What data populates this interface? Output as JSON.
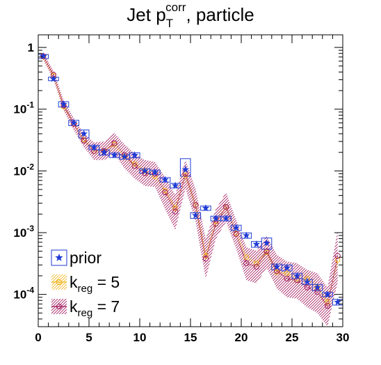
{
  "chart_data": {
    "type": "scatter",
    "title": {
      "base": "Jet p",
      "sup": "corr",
      "sub": "T",
      "tail": ", particle"
    },
    "xlabel": "",
    "ylabel": "",
    "xlim": [
      0,
      30
    ],
    "ylim": [
      3e-05,
      1.6
    ],
    "yscale": "log",
    "x_ticks": [
      0,
      5,
      10,
      15,
      20,
      25,
      30
    ],
    "x_tick_labels": [
      "0",
      "5",
      "10",
      "15",
      "20",
      "25",
      "30"
    ],
    "y_ticks": [
      1,
      0.1,
      0.01,
      0.001,
      0.0001
    ],
    "y_tick_labels": [
      {
        "base": "1",
        "exp": ""
      },
      {
        "base": "10",
        "exp": "-1"
      },
      {
        "base": "10",
        "exp": "-2"
      },
      {
        "base": "10",
        "exp": "-3"
      },
      {
        "base": "10",
        "exp": "-4"
      }
    ],
    "grid": false,
    "legend_position": "bottom-left",
    "legend": [
      {
        "key": "prior",
        "label": "prior"
      },
      {
        "key": "k5",
        "label_base": "k",
        "label_sub": "reg",
        "label_tail": " = 5"
      },
      {
        "key": "k7",
        "label_base": "k",
        "label_sub": "reg",
        "label_tail": " = 7"
      }
    ],
    "colors": {
      "prior_marker": "#1e3ad6",
      "prior_box": "#1e3ad6",
      "kreg5": "#f0b419",
      "kreg7": "#a0145a"
    },
    "bin_width": 1,
    "x": [
      0.5,
      1.5,
      2.5,
      3.5,
      4.5,
      5.5,
      6.5,
      7.5,
      8.5,
      9.5,
      10.5,
      11.5,
      12.5,
      13.5,
      14.5,
      15.5,
      16.5,
      17.5,
      18.5,
      19.5,
      20.5,
      21.5,
      22.5,
      23.5,
      24.5,
      25.5,
      26.5,
      27.5,
      28.5,
      29.5
    ],
    "series": [
      {
        "name": "prior",
        "values": [
          0.72,
          0.31,
          0.12,
          0.06,
          0.04,
          0.024,
          0.02,
          0.018,
          0.017,
          0.018,
          0.01,
          0.0095,
          0.0072,
          0.0058,
          0.0105,
          0.0019,
          0.0025,
          0.0017,
          0.0017,
          0.0012,
          0.0009,
          0.00065,
          0.00068,
          0.00028,
          0.00027,
          0.0002,
          0.00016,
          0.00013,
          0.0001,
          7.5e-05
        ],
        "box_low": [
          0.66,
          0.29,
          0.108,
          0.054,
          0.034,
          0.022,
          0.018,
          0.0165,
          0.0155,
          0.0163,
          0.0092,
          0.0087,
          0.0066,
          0.0053,
          0.0082,
          0.0017,
          0.0023,
          0.00155,
          0.00155,
          0.00108,
          0.00081,
          0.00058,
          0.00054,
          0.00025,
          0.00024,
          0.00018,
          0.000145,
          0.000115,
          9.2e-05,
          6.7e-05
        ],
        "box_high": [
          0.77,
          0.33,
          0.132,
          0.066,
          0.046,
          0.026,
          0.022,
          0.0195,
          0.0185,
          0.0197,
          0.0108,
          0.0103,
          0.0078,
          0.0063,
          0.0158,
          0.0021,
          0.0027,
          0.00185,
          0.00185,
          0.00132,
          0.00099,
          0.00072,
          0.00082,
          0.00031,
          0.0003,
          0.00022,
          0.000175,
          0.000145,
          0.000108,
          8.3e-05
        ]
      },
      {
        "name": "kreg5",
        "values": [
          0.7,
          0.35,
          0.11,
          0.058,
          0.032,
          0.021,
          0.021,
          0.027,
          0.017,
          0.013,
          0.01,
          0.0082,
          0.0048,
          0.0025,
          0.0085,
          0.0028,
          0.00042,
          0.0015,
          0.0026,
          0.00098,
          0.0004,
          0.00032,
          0.00048,
          0.00023,
          0.00022,
          0.00018,
          0.00018,
          0.00013,
          7.5e-05,
          0.00036
        ],
        "band_low": [
          0.66,
          0.32,
          0.1,
          0.052,
          0.028,
          0.018,
          0.018,
          0.022,
          0.0145,
          0.011,
          0.0085,
          0.0068,
          0.0039,
          0.002,
          0.0068,
          0.0022,
          0.00032,
          0.0012,
          0.0021,
          0.00078,
          0.00031,
          0.00025,
          0.00038,
          0.00018,
          0.00017,
          0.00014,
          0.00014,
          0.0001,
          5.8e-05,
          0.00028
        ],
        "band_high": [
          0.74,
          0.38,
          0.12,
          0.064,
          0.036,
          0.024,
          0.024,
          0.032,
          0.0195,
          0.015,
          0.0115,
          0.0096,
          0.0057,
          0.003,
          0.0102,
          0.0034,
          0.00052,
          0.0018,
          0.0031,
          0.00118,
          0.00049,
          0.00039,
          0.00058,
          0.00028,
          0.00027,
          0.00022,
          0.00023,
          0.00016,
          9.2e-05,
          0.00044
        ]
      },
      {
        "name": "kreg7",
        "values": [
          0.72,
          0.36,
          0.115,
          0.058,
          0.031,
          0.021,
          0.021,
          0.028,
          0.018,
          0.012,
          0.0092,
          0.009,
          0.0045,
          0.0022,
          0.009,
          0.0028,
          0.00038,
          0.0014,
          0.0026,
          0.00095,
          0.00032,
          0.00028,
          0.0005,
          0.00024,
          0.00018,
          0.00017,
          0.00013,
          0.00011,
          6.5e-05,
          0.00042
        ],
        "band_low": [
          0.62,
          0.3,
          0.095,
          0.046,
          0.024,
          0.015,
          0.015,
          0.019,
          0.011,
          0.0075,
          0.0057,
          0.0055,
          0.0024,
          0.0011,
          0.0052,
          0.0015,
          0.00018,
          0.0008,
          0.0015,
          0.00055,
          0.00017,
          0.00015,
          0.00027,
          0.000125,
          9e-05,
          8.5e-05,
          6.2e-05,
          5e-05,
          3e-05,
          0.00016
        ],
        "band_high": [
          0.82,
          0.42,
          0.14,
          0.072,
          0.04,
          0.029,
          0.03,
          0.041,
          0.027,
          0.019,
          0.015,
          0.014,
          0.0079,
          0.0041,
          0.015,
          0.0051,
          0.0008,
          0.0024,
          0.0045,
          0.0016,
          0.00058,
          0.00051,
          0.00088,
          0.00044,
          0.00034,
          0.00032,
          0.00025,
          0.00022,
          0.00013,
          0.0011
        ]
      }
    ]
  }
}
